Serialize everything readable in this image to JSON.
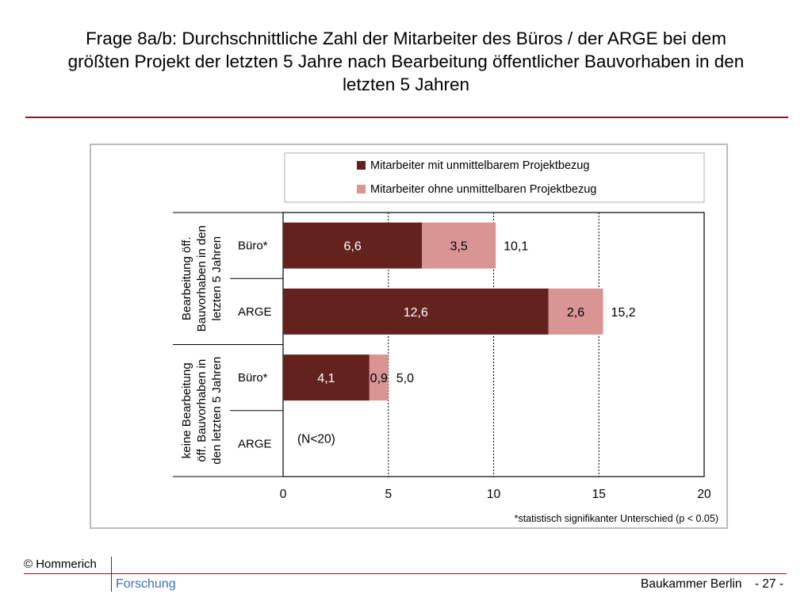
{
  "header": {
    "title_line1": "Frage 8a/b: Durchschnittliche Zahl der Mitarbeiter des Büros / der ARGE bei dem",
    "title_line2": "größten Projekt der letzten 5 Jahre nach Bearbeitung öffentlicher Bauvorhaben in den",
    "title_line3": "letzten 5 Jahren"
  },
  "chart_data": {
    "type": "bar",
    "orientation": "horizontal",
    "stacked": true,
    "categories": [
      "Büro*",
      "ARGE",
      "Büro*",
      "ARGE"
    ],
    "groups": [
      {
        "label_lines": [
          "Bearbeitung öff.",
          "Bauvorhaben in den",
          "letzten 5 Jahren"
        ],
        "categories": [
          0,
          1
        ]
      },
      {
        "label_lines": [
          "keine Bearbeitung",
          "öff. Bauvorhaben in",
          "den letzten 5 Jahren"
        ],
        "categories": [
          2,
          3
        ]
      }
    ],
    "series": [
      {
        "name": "Mitarbeiter mit unmittelbarem Projektbezug",
        "color": "#64221f",
        "values": [
          6.6,
          12.6,
          4.1,
          null
        ],
        "labels": [
          "6,6",
          "12,6",
          "4,1",
          ""
        ]
      },
      {
        "name": "Mitarbeiter ohne unmittelbaren Projektbezug",
        "color": "#d99594",
        "values": [
          3.5,
          2.6,
          0.9,
          null
        ],
        "labels": [
          "3,5",
          "2,6",
          "0,9",
          ""
        ]
      }
    ],
    "totals": [
      10.1,
      15.2,
      5.0,
      null
    ],
    "total_labels": [
      "10,1",
      "15,2",
      "5,0",
      ""
    ],
    "annotations": [
      {
        "category": 3,
        "text": "(N<20)"
      }
    ],
    "xlim": [
      0,
      20
    ],
    "xticks": [
      0,
      5,
      10,
      15,
      20
    ],
    "xtick_labels": [
      "0",
      "5",
      "10",
      "15",
      "20"
    ],
    "grid": "vertical dashed at 5, 10, 15",
    "legend": "top",
    "footnote": "*statistisch signifikanter Unterschied  (p < 0.05)"
  },
  "footer": {
    "copyright": "© Hommerich",
    "forschung": "Forschung",
    "org": "Baukammer Berlin",
    "page": "- 27 -"
  }
}
